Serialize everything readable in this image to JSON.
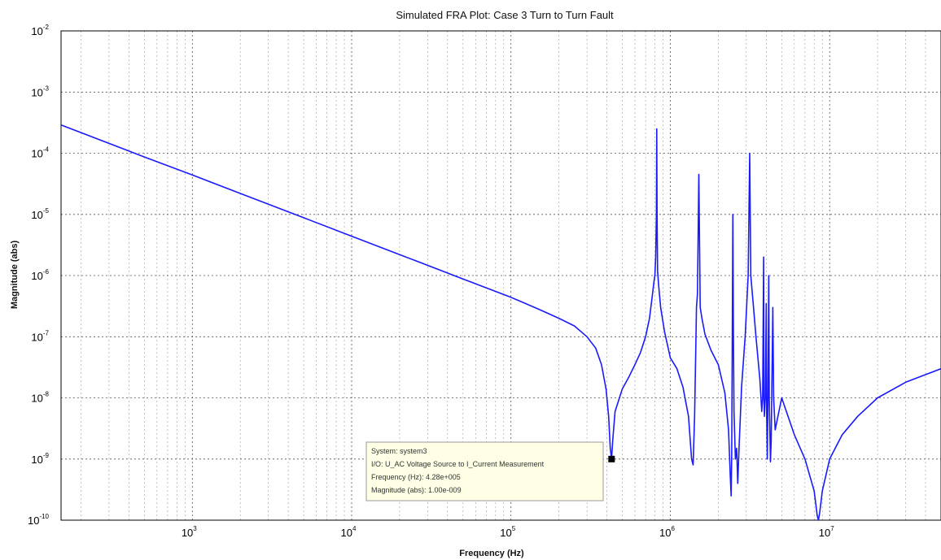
{
  "chart_data": {
    "type": "line",
    "title": "Simulated FRA Plot: Case 3 Turn to Turn Fault",
    "xlabel": "Frequency  (Hz)",
    "ylabel": "Magnitude (abs)",
    "xscale": "log",
    "yscale": "log",
    "xlim": [
      150,
      50000000
    ],
    "ylim": [
      1e-10,
      0.01
    ],
    "grid": true,
    "x_ticks": [
      {
        "value": 1000,
        "base": "10",
        "exp": "3"
      },
      {
        "value": 10000,
        "base": "10",
        "exp": "4"
      },
      {
        "value": 100000,
        "base": "10",
        "exp": "5"
      },
      {
        "value": 1000000,
        "base": "10",
        "exp": "6"
      },
      {
        "value": 10000000,
        "base": "10",
        "exp": "7"
      }
    ],
    "y_ticks": [
      {
        "value": 0.01,
        "base": "10",
        "exp": "-2"
      },
      {
        "value": 0.001,
        "base": "10",
        "exp": "-3"
      },
      {
        "value": 0.0001,
        "base": "10",
        "exp": "-4"
      },
      {
        "value": 1e-05,
        "base": "10",
        "exp": "-5"
      },
      {
        "value": 1e-06,
        "base": "10",
        "exp": "-6"
      },
      {
        "value": 1e-07,
        "base": "10",
        "exp": "-7"
      },
      {
        "value": 1e-08,
        "base": "10",
        "exp": "-8"
      },
      {
        "value": 1e-09,
        "base": "10",
        "exp": "-9"
      },
      {
        "value": 1e-10,
        "base": "10",
        "exp": "-10"
      }
    ],
    "series": [
      {
        "color": "#1a1aff",
        "points": [
          [
            150,
            0.00029
          ],
          [
            300,
            0.000145
          ],
          [
            500,
            8.7e-05
          ],
          [
            1000,
            4.4e-05
          ],
          [
            2000,
            2.2e-05
          ],
          [
            5000,
            8.8e-06
          ],
          [
            10000,
            4.4e-06
          ],
          [
            20000,
            2.2e-06
          ],
          [
            50000,
            8.8e-07
          ],
          [
            100000,
            4.4e-07
          ],
          [
            150000,
            2.8e-07
          ],
          [
            200000,
            2e-07
          ],
          [
            250000,
            1.5e-07
          ],
          [
            300000,
            1e-07
          ],
          [
            340000,
            6.5e-08
          ],
          [
            370000,
            3.5e-08
          ],
          [
            395000,
            1.4e-08
          ],
          [
            410000,
            5e-09
          ],
          [
            420000,
            1.5e-09
          ],
          [
            428000,
            1e-09
          ],
          [
            435000,
            2e-09
          ],
          [
            450000,
            6e-09
          ],
          [
            500000,
            1.4e-08
          ],
          [
            550000,
            2.2e-08
          ],
          [
            600000,
            3.5e-08
          ],
          [
            650000,
            5.5e-08
          ],
          [
            700000,
            1e-07
          ],
          [
            740000,
            2e-07
          ],
          [
            770000,
            4.5e-07
          ],
          [
            790000,
            8e-07
          ],
          [
            800000,
            1e-06
          ],
          [
            810000,
            2e-06
          ],
          [
            818000,
            1e-05
          ],
          [
            822000,
            0.00025
          ],
          [
            826000,
            1e-05
          ],
          [
            832000,
            1.2e-06
          ],
          [
            845000,
            7e-07
          ],
          [
            870000,
            3e-07
          ],
          [
            920000,
            1.2e-07
          ],
          [
            1000000,
            4.5e-08
          ],
          [
            1100000,
            3e-08
          ],
          [
            1200000,
            1.5e-08
          ],
          [
            1300000,
            5e-09
          ],
          [
            1360000,
            1e-09
          ],
          [
            1390000,
            8e-10
          ],
          [
            1400000,
            1.5e-09
          ],
          [
            1420000,
            5e-09
          ],
          [
            1440000,
            4e-08
          ],
          [
            1460000,
            3e-07
          ],
          [
            1480000,
            5e-07
          ],
          [
            1510000,
            4.5e-05
          ],
          [
            1540000,
            3e-07
          ],
          [
            1580000,
            2e-07
          ],
          [
            1650000,
            1.1e-07
          ],
          [
            1800000,
            6e-08
          ],
          [
            2000000,
            3.5e-08
          ],
          [
            2200000,
            1.2e-08
          ],
          [
            2320000,
            3e-09
          ],
          [
            2380000,
            5e-10
          ],
          [
            2410000,
            2.5e-10
          ],
          [
            2430000,
            1.2e-09
          ],
          [
            2450000,
            1e-07
          ],
          [
            2470000,
            1e-05
          ],
          [
            2490000,
            1e-07
          ],
          [
            2510000,
            6e-09
          ],
          [
            2560000,
            1e-09
          ],
          [
            2610000,
            1.5e-09
          ],
          [
            2650000,
            4e-10
          ],
          [
            2700000,
            1.5e-09
          ],
          [
            2800000,
            1.5e-08
          ],
          [
            2950000,
            1e-07
          ],
          [
            3080000,
            1e-06
          ],
          [
            3150000,
            0.0001
          ],
          [
            3200000,
            1e-06
          ],
          [
            3300000,
            4e-07
          ],
          [
            3450000,
            1e-07
          ],
          [
            3650000,
            2e-08
          ],
          [
            3750000,
            6e-09
          ],
          [
            3800000,
            1e-08
          ],
          [
            3850000,
            2e-06
          ],
          [
            3870000,
            1e-08
          ],
          [
            3900000,
            5e-09
          ],
          [
            3950000,
            1e-08
          ],
          [
            4000000,
            3.5e-07
          ],
          [
            4030000,
            5e-09
          ],
          [
            4060000,
            1e-09
          ],
          [
            4100000,
            1e-08
          ],
          [
            4150000,
            1e-06
          ],
          [
            4180000,
            1e-08
          ],
          [
            4250000,
            9e-10
          ],
          [
            4300000,
            2e-09
          ],
          [
            4400000,
            3e-07
          ],
          [
            4450000,
            1e-08
          ],
          [
            4550000,
            3e-09
          ],
          [
            5000000,
            1e-08
          ],
          [
            6000000,
            2.5e-09
          ],
          [
            7000000,
            1e-09
          ],
          [
            8000000,
            3e-10
          ],
          [
            8350000,
            1.2e-10
          ],
          [
            8500000,
            1e-10
          ],
          [
            8650000,
            1.3e-10
          ],
          [
            9000000,
            3e-10
          ],
          [
            10000000,
            1e-09
          ],
          [
            12000000,
            2.5e-09
          ],
          [
            15000000,
            5e-09
          ],
          [
            20000000,
            1e-08
          ],
          [
            30000000,
            1.8e-08
          ],
          [
            50000000,
            3e-08
          ]
        ]
      }
    ],
    "datatip": {
      "marker": [
        428000,
        1e-09
      ],
      "lines": [
        "System: system3",
        "I/O: U_AC Voltage Source to I_Current Measurement",
        "Frequency (Hz): 4.28e+005",
        "Magnitude (abs): 1.00e-009"
      ]
    }
  }
}
